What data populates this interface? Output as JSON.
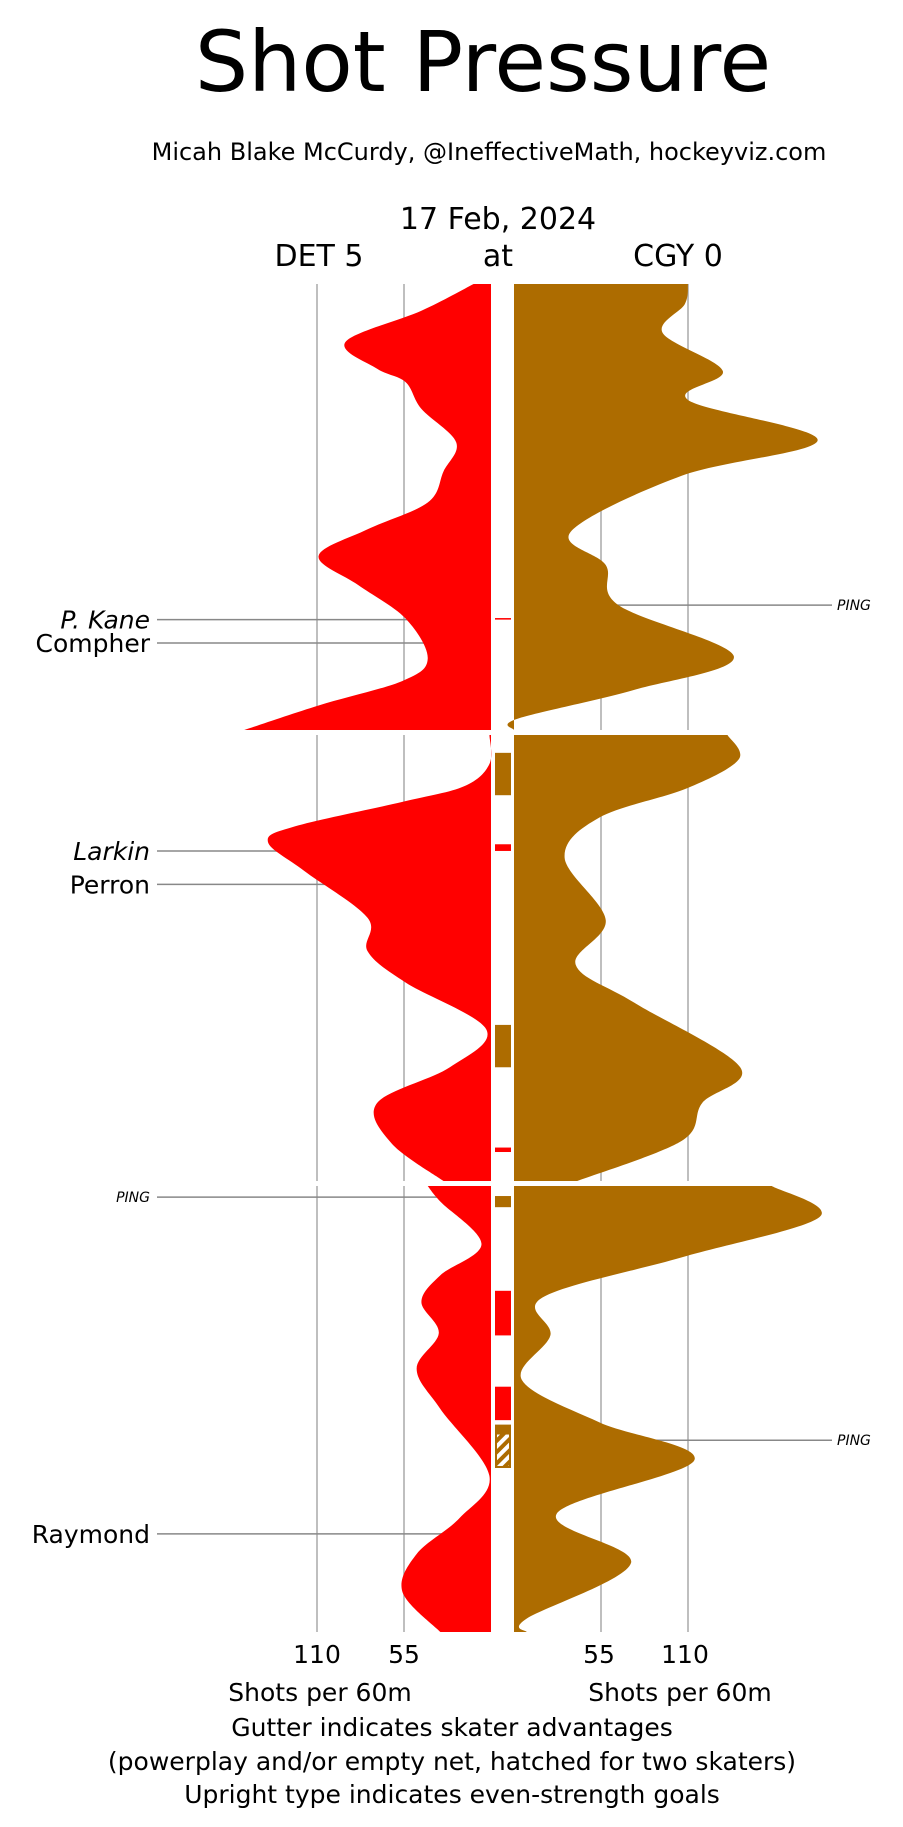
{
  "chart_data": {
    "type": "area",
    "title": "Shot Pressure",
    "subtitle": "Micah Blake McCurdy, @IneffectiveMath, hockeyviz.com",
    "date": "17 Feb, 2024",
    "at_label": "at",
    "xticks": [
      "110",
      "55",
      "55",
      "110"
    ],
    "xtick_values": [
      110,
      55,
      55,
      110
    ],
    "xlabel_left": "Shots per 60m",
    "xlabel_right": "Shots per 60m",
    "notes": [
      "Gutter indicates skater advantages",
      "(powerplay and/or empty net, hatched for two skaters)",
      "Upright type indicates even-strength goals"
    ],
    "period_minutes": 20,
    "teams": [
      {
        "label": "DET 5",
        "abbr": "DET",
        "score": 5,
        "color": "#ff0000",
        "side": "left",
        "periods": [
          [
            [
              0,
              11
            ],
            [
              1.2,
              44
            ],
            [
              2.6,
              92
            ],
            [
              3.8,
              72
            ],
            [
              4.4,
              54
            ],
            [
              5.6,
              44
            ],
            [
              7.1,
              22
            ],
            [
              8.4,
              30
            ],
            [
              9.8,
              40
            ],
            [
              11,
              78
            ],
            [
              12.2,
              109
            ],
            [
              13.5,
              84
            ],
            [
              15,
              54
            ],
            [
              16.8,
              40
            ],
            [
              17.8,
              56
            ],
            [
              18.9,
              109
            ],
            [
              20,
              156
            ]
          ],
          [
            [
              0,
              1
            ],
            [
              1.3,
              1
            ],
            [
              2.3,
              17
            ],
            [
              3.0,
              56
            ],
            [
              4.1,
              124
            ],
            [
              4.8,
              141
            ],
            [
              6.1,
              118
            ],
            [
              8.2,
              78
            ],
            [
              9.7,
              78
            ],
            [
              11.1,
              54
            ],
            [
              13.2,
              3
            ],
            [
              14.9,
              26
            ],
            [
              16.5,
              72
            ],
            [
              18.3,
              63
            ],
            [
              20,
              30
            ]
          ],
          [
            [
              0,
              40
            ],
            [
              0.7,
              32
            ],
            [
              2.6,
              6
            ],
            [
              4.0,
              32
            ],
            [
              5.2,
              44
            ],
            [
              6.6,
              33
            ],
            [
              8.2,
              47
            ],
            [
              10.0,
              32
            ],
            [
              13.0,
              1
            ],
            [
              14.9,
              20
            ],
            [
              16.5,
              47
            ],
            [
              18.2,
              56
            ],
            [
              20,
              32
            ]
          ]
        ]
      },
      {
        "label": "CGY 0",
        "abbr": "CGY",
        "score": 0,
        "color": "#ad6c00",
        "side": "right",
        "periods": [
          [
            [
              0,
              110
            ],
            [
              0.9,
              108
            ],
            [
              2.2,
              94
            ],
            [
              3.9,
              132
            ],
            [
              5.2,
              110
            ],
            [
              7.0,
              192
            ],
            [
              8.6,
              106
            ],
            [
              11.1,
              36
            ],
            [
              12.6,
              58
            ],
            [
              14.4,
              66
            ],
            [
              16.7,
              139
            ],
            [
              18.2,
              76
            ],
            [
              19.5,
              2
            ],
            [
              20,
              0
            ]
          ],
          [
            [
              0,
              135
            ],
            [
              1.1,
              142
            ],
            [
              2.4,
              109
            ],
            [
              3.7,
              54
            ],
            [
              5.5,
              32
            ],
            [
              8.3,
              58
            ],
            [
              10.3,
              39
            ],
            [
              12.0,
              76
            ],
            [
              14.9,
              143
            ],
            [
              16.5,
              119
            ],
            [
              18.2,
              106
            ],
            [
              20,
              40
            ]
          ],
          [
            [
              0,
              163
            ],
            [
              1.4,
              193
            ],
            [
              3.2,
              106
            ],
            [
              5.0,
              18
            ],
            [
              6.7,
              23
            ],
            [
              8.7,
              5
            ],
            [
              10.6,
              54
            ],
            [
              12.3,
              114
            ],
            [
              14.7,
              27
            ],
            [
              16.9,
              74
            ],
            [
              19.4,
              8
            ],
            [
              20,
              8
            ]
          ]
        ]
      }
    ],
    "goals": [
      {
        "team": "DET",
        "player": "P. Kane",
        "period": 1,
        "minute": 15.05,
        "even_strength": false
      },
      {
        "team": "DET",
        "player": "Compher",
        "period": 1,
        "minute": 16.1,
        "even_strength": true
      },
      {
        "team": "CGY",
        "player": "PING",
        "period": 1,
        "minute": 14.4,
        "even_strength": false
      },
      {
        "team": "DET",
        "player": "Larkin",
        "period": 2,
        "minute": 5.2,
        "even_strength": false
      },
      {
        "team": "DET",
        "player": "Perron",
        "period": 2,
        "minute": 6.7,
        "even_strength": true
      },
      {
        "team": "DET",
        "player": "PING",
        "period": 3,
        "minute": 0.5,
        "even_strength": false
      },
      {
        "team": "CGY",
        "player": "PING",
        "period": 3,
        "minute": 11.4,
        "even_strength": false
      },
      {
        "team": "DET",
        "player": "Raymond",
        "period": 3,
        "minute": 15.6,
        "even_strength": true
      }
    ],
    "advantages": [
      {
        "team": "DET",
        "period": 1,
        "start": 14.98,
        "end": 15.05,
        "skaters": 1
      },
      {
        "team": "CGY",
        "period": 2,
        "start": 0.8,
        "end": 2.7,
        "skaters": 1
      },
      {
        "team": "DET",
        "period": 2,
        "start": 4.9,
        "end": 5.2,
        "skaters": 1
      },
      {
        "team": "CGY",
        "period": 2,
        "start": 13.0,
        "end": 14.9,
        "skaters": 1
      },
      {
        "team": "DET",
        "period": 2,
        "start": 18.5,
        "end": 18.7,
        "skaters": 1
      },
      {
        "team": "CGY",
        "period": 3,
        "start": 0.45,
        "end": 0.95,
        "skaters": 1
      },
      {
        "team": "DET",
        "period": 3,
        "start": 4.7,
        "end": 6.7,
        "skaters": 1
      },
      {
        "team": "DET",
        "period": 3,
        "start": 9.0,
        "end": 10.5,
        "skaters": 1
      },
      {
        "team": "CGY",
        "period": 3,
        "start": 10.7,
        "end": 11.1,
        "skaters": 1
      },
      {
        "team": "CGY",
        "period": 3,
        "start": 11.1,
        "end": 12.6,
        "skaters": 2
      }
    ]
  }
}
